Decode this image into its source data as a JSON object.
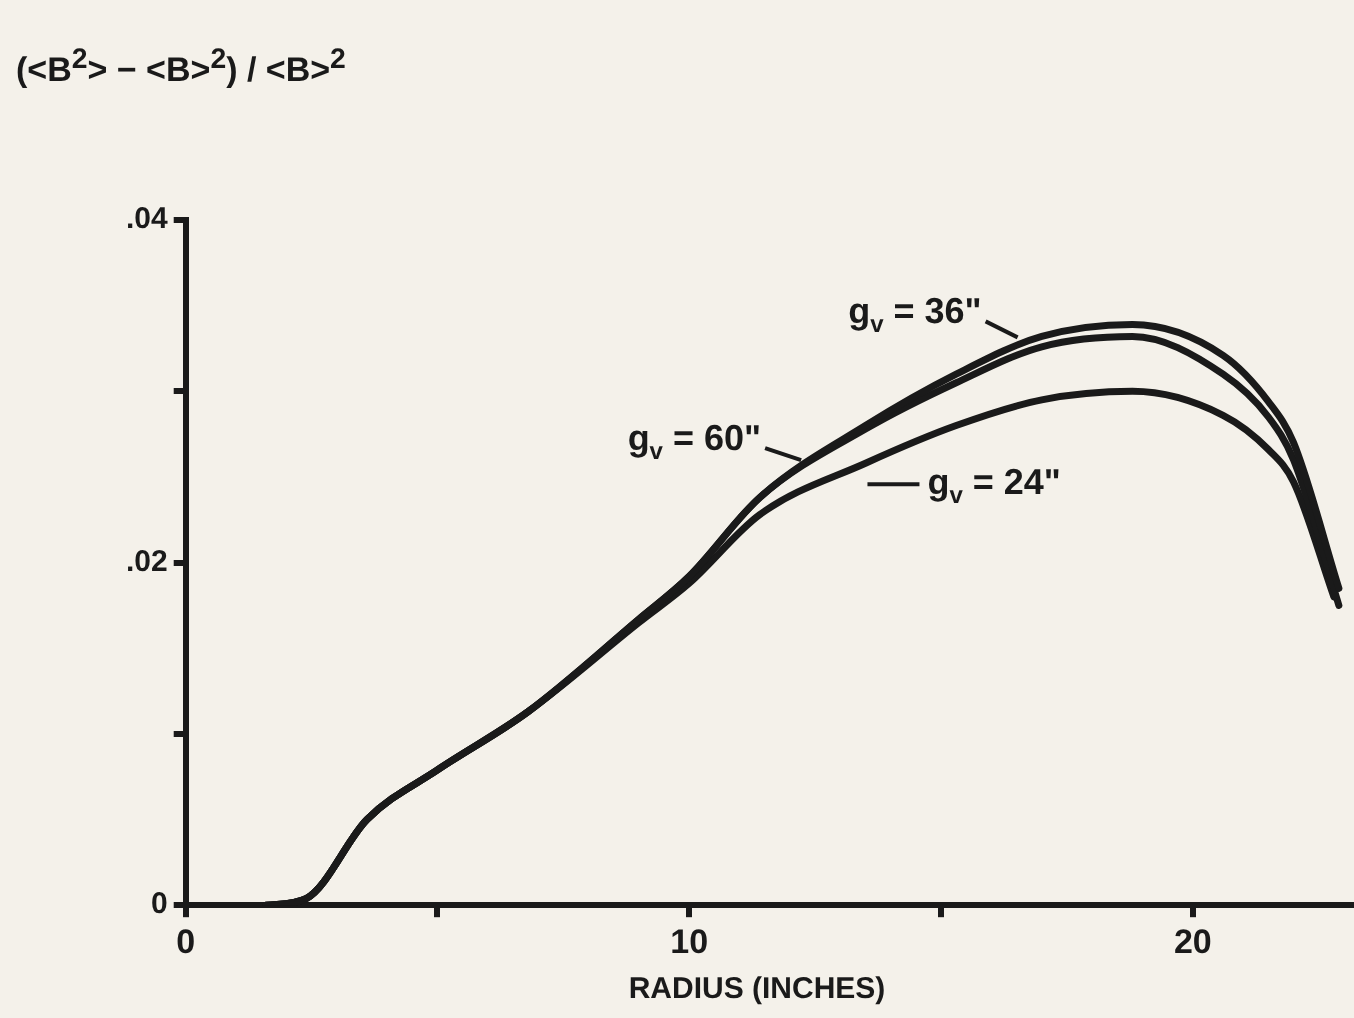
{
  "chart_data": {
    "type": "line",
    "ylabel": "(<B$^{2}$> − <B>$^{2}$) / <B>$^{2}$",
    "xlabel": "RADIUS (INCHES)",
    "xlim": [
      0,
      23.2
    ],
    "xticks": [
      0,
      {
        "value": 5,
        "label": null
      },
      10,
      {
        "value": 15,
        "label": null
      },
      20
    ],
    "ylim": [
      0,
      0.04
    ],
    "yticks": [
      {
        "value": 0,
        "label": "0"
      },
      {
        "value": 0.01,
        "label": null
      },
      {
        "value": 0.02,
        "label": ".02"
      },
      {
        "value": 0.03,
        "label": null
      },
      {
        "value": 0.04,
        "label": ".04"
      }
    ],
    "grid": false,
    "legend": "top",
    "marker": "none",
    "line_style": "solid",
    "series": [
      {
        "name": "g$_{v}$ = 36\"",
        "color": "#1a1a1a",
        "x": [
          1.6,
          2.4,
          3.6,
          5,
          6.8,
          9,
          10,
          11.4,
          13.5,
          15.3,
          17,
          18.8,
          20.6,
          21.5,
          22,
          22.9
        ],
        "values": [
          0,
          0.0004,
          0.005,
          0.0079,
          0.0113,
          0.0167,
          0.0192,
          0.0238,
          0.028,
          0.031,
          0.0332,
          0.0339,
          0.0321,
          0.0294,
          0.027,
          0.0185
        ]
      },
      {
        "name": "g$_{v}$ = 60\"",
        "color": "#1a1a1a",
        "x": [
          1.6,
          2.4,
          3.6,
          5,
          6.8,
          9,
          10,
          11.4,
          13.5,
          15.3,
          17,
          18.8,
          20.6,
          21.5,
          22,
          22.9
        ],
        "values": [
          0,
          0.0004,
          0.005,
          0.0079,
          0.0113,
          0.0167,
          0.0192,
          0.0238,
          0.0278,
          0.0305,
          0.0326,
          0.0332,
          0.031,
          0.0285,
          0.026,
          0.0175
        ]
      },
      {
        "name": "g$_{v}$ = 24\"",
        "color": "#1a1a1a",
        "x": [
          1.6,
          2.4,
          3.6,
          5,
          6.8,
          9,
          10,
          11.4,
          13.5,
          15.3,
          17,
          18.8,
          20.6,
          21.5,
          22,
          22.8
        ],
        "values": [
          0,
          0.0004,
          0.005,
          0.0079,
          0.0113,
          0.0165,
          0.0188,
          0.0228,
          0.0258,
          0.028,
          0.0295,
          0.03,
          0.0286,
          0.0266,
          0.0247,
          0.018
        ]
      }
    ]
  }
}
